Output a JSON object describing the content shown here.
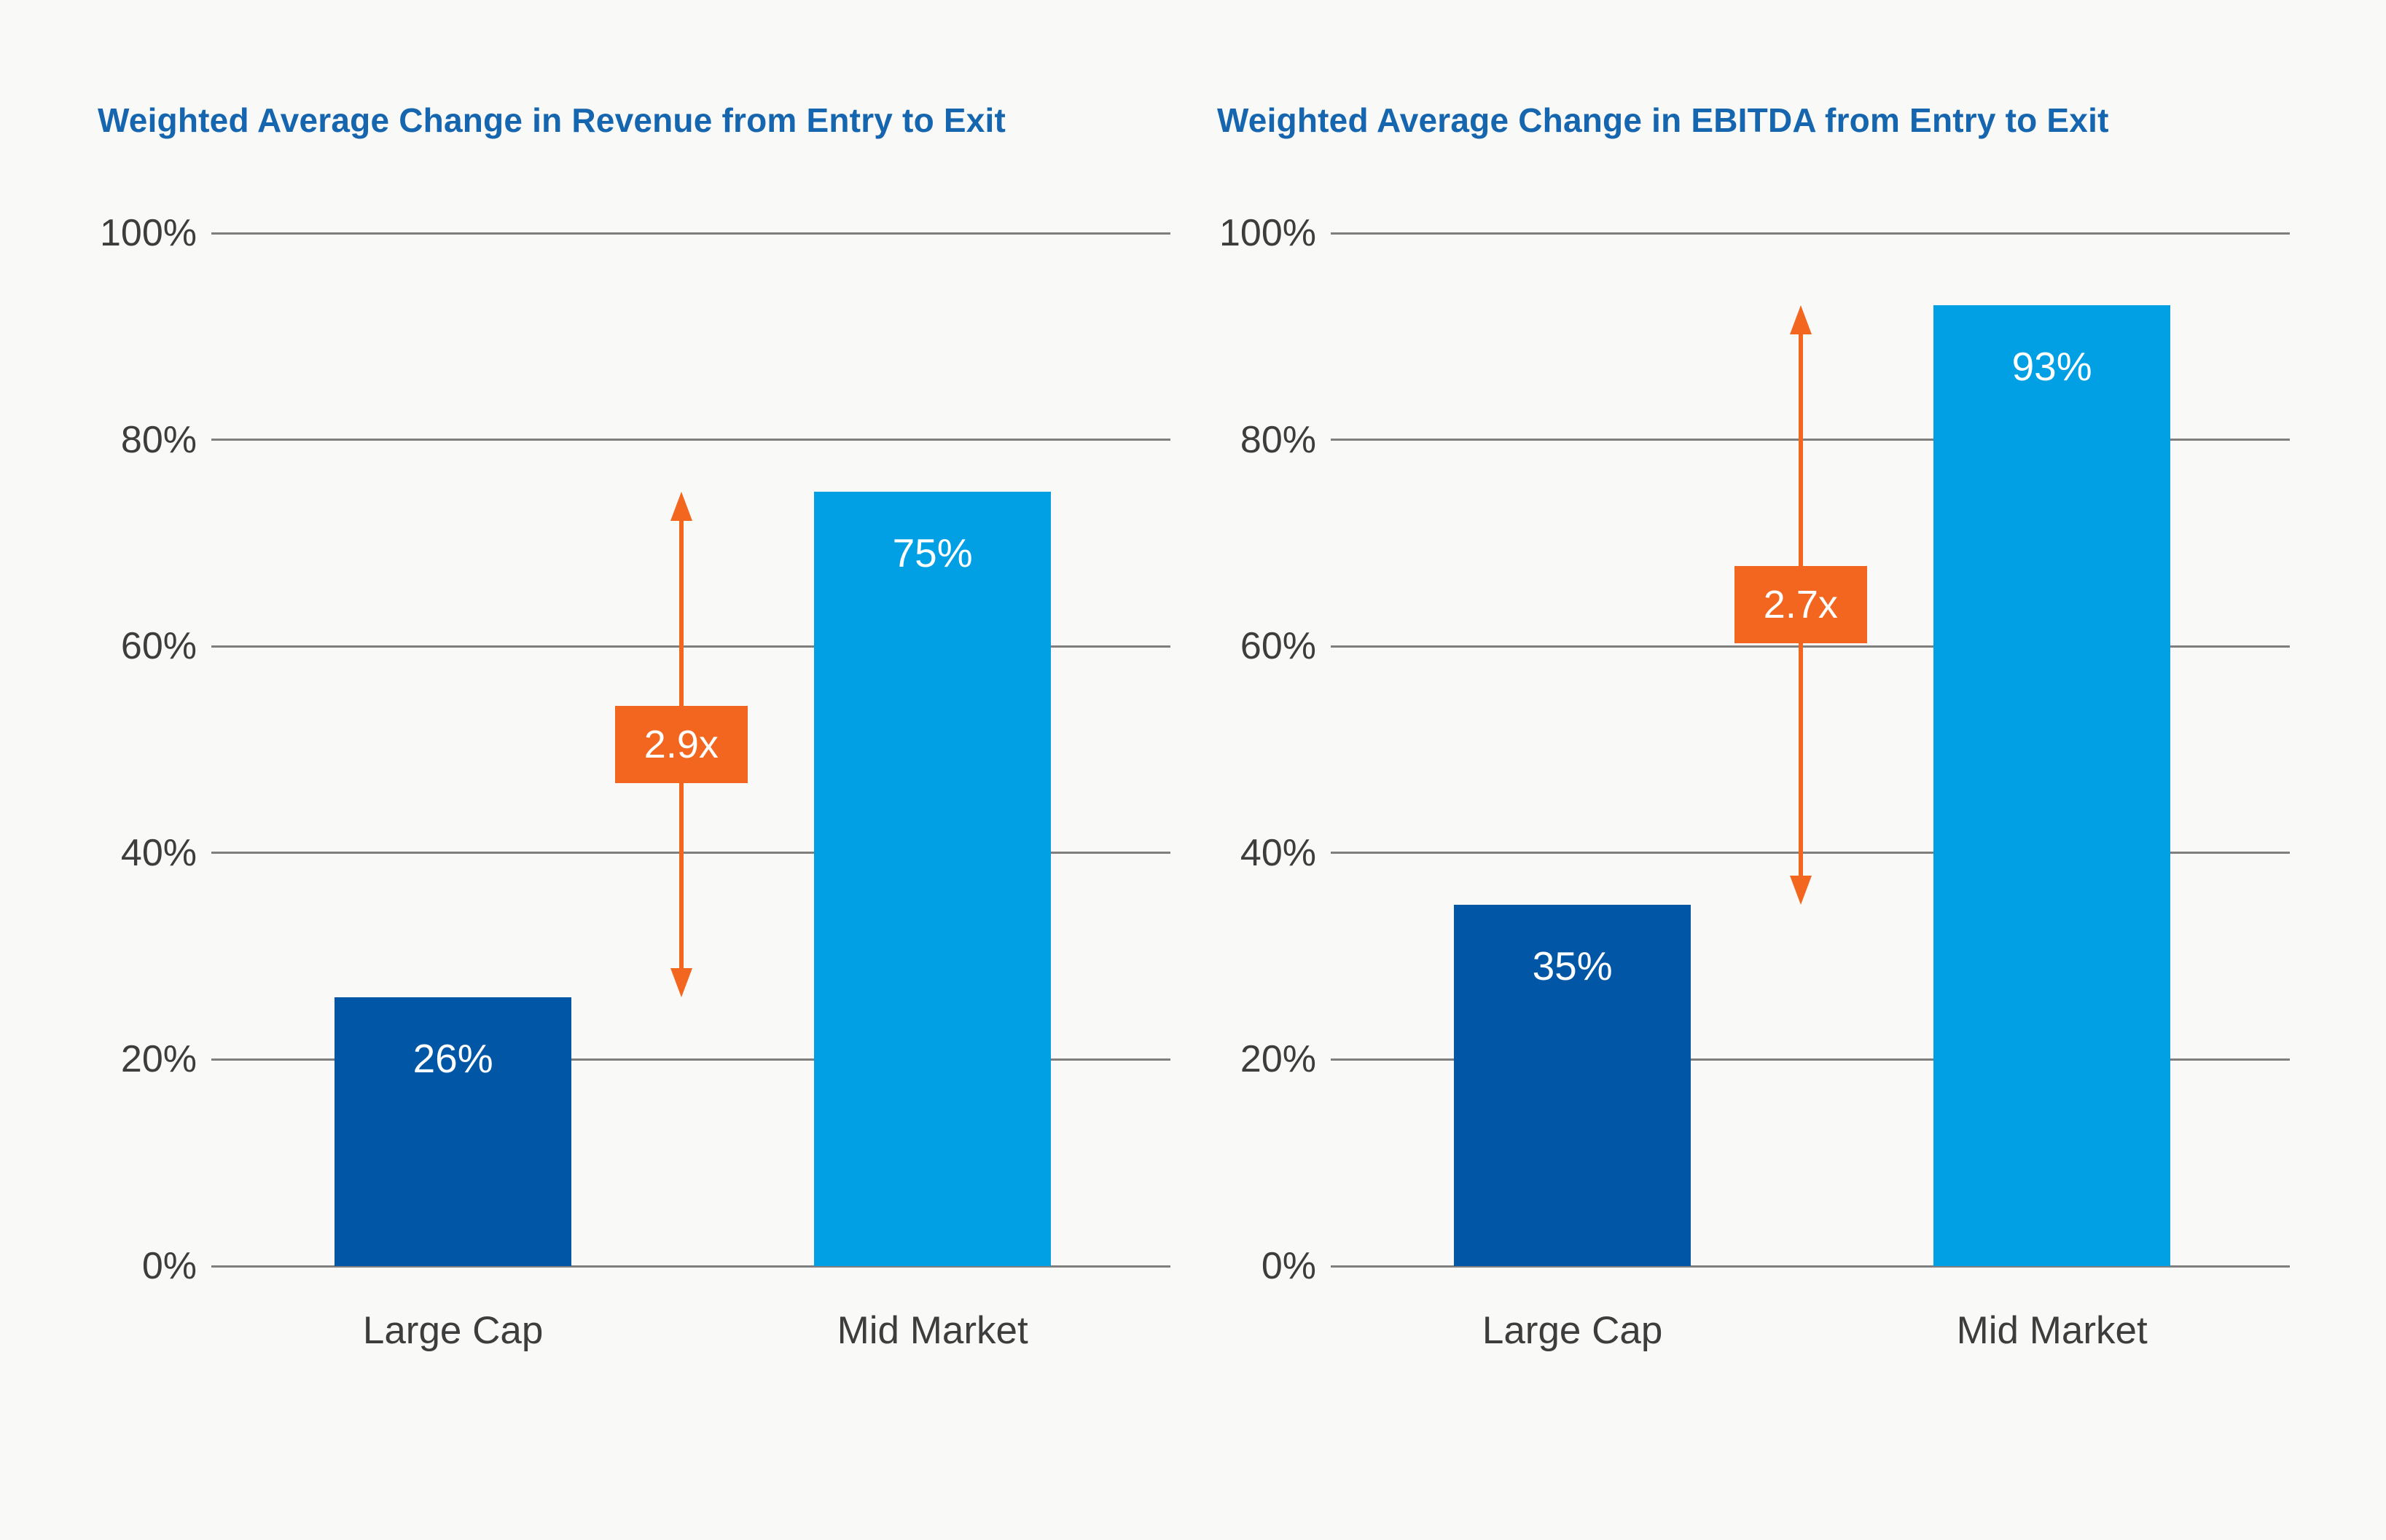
{
  "page": {
    "background": "#F9F9F7"
  },
  "colors": {
    "title": "#1565AF",
    "grid": "#7F7F7F",
    "axis_text": "#3D3D3D",
    "bar_dark_blue": "#0157A6",
    "bar_light_blue": "#019FE3",
    "arrow_orange": "#F2661F",
    "value_text": "#FFFFFF"
  },
  "chart_data": [
    {
      "type": "bar",
      "title": "Weighted Average Change in Revenue from Entry to Exit",
      "categories": [
        "Large Cap",
        "Mid Market"
      ],
      "values": [
        26,
        75
      ],
      "value_labels": [
        "26%",
        "75%"
      ],
      "bar_colors": [
        "#0157A6",
        "#019FE3"
      ],
      "multiplier": {
        "label": "2.9x",
        "from_value": 26,
        "to_value": 75
      },
      "xlabel": "",
      "ylabel": "",
      "ylim": [
        0,
        100
      ],
      "yticks": [
        {
          "value": 100,
          "label": "100%"
        },
        {
          "value": 80,
          "label": "80%"
        },
        {
          "value": 60,
          "label": "60%"
        },
        {
          "value": 40,
          "label": "40%"
        },
        {
          "value": 20,
          "label": "20%"
        },
        {
          "value": 0,
          "label": "0%"
        }
      ],
      "grid": true,
      "legend": "none"
    },
    {
      "type": "bar",
      "title": "Weighted Average Change in EBITDA from Entry to Exit",
      "categories": [
        "Large Cap",
        "Mid Market"
      ],
      "values": [
        35,
        93
      ],
      "value_labels": [
        "35%",
        "93%"
      ],
      "bar_colors": [
        "#0157A6",
        "#019FE3"
      ],
      "multiplier": {
        "label": "2.7x",
        "from_value": 35,
        "to_value": 93
      },
      "xlabel": "",
      "ylabel": "",
      "ylim": [
        0,
        100
      ],
      "yticks": [
        {
          "value": 100,
          "label": "100%"
        },
        {
          "value": 80,
          "label": "80%"
        },
        {
          "value": 60,
          "label": "60%"
        },
        {
          "value": 40,
          "label": "40%"
        },
        {
          "value": 20,
          "label": "20%"
        },
        {
          "value": 0,
          "label": "0%"
        }
      ],
      "grid": true,
      "legend": "none"
    }
  ]
}
